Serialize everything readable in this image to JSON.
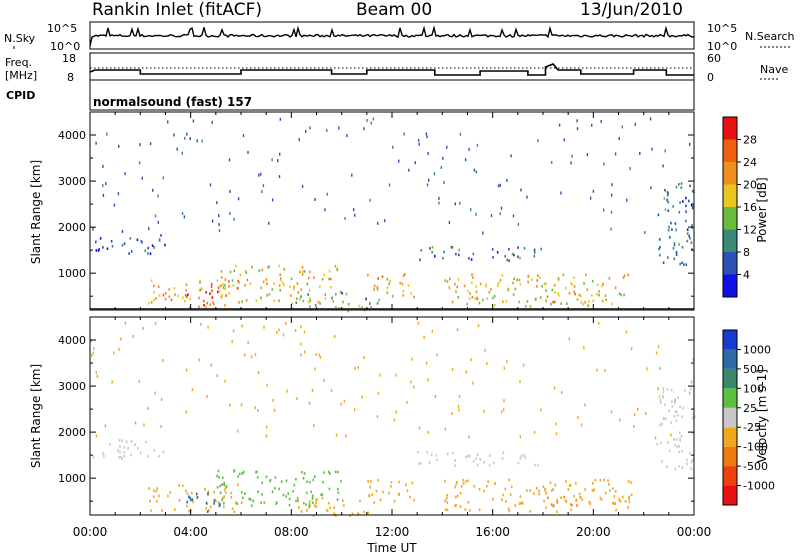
{
  "header": {
    "station": "Rankin Inlet (fitACF)",
    "beam": "Beam 00",
    "date": "13/Jun/2010"
  },
  "noise_panel": {
    "left_label": "N.Sky",
    "left_ticks": [
      "10^5",
      "10^0"
    ],
    "right_label": "N.Search",
    "right_ticks": [
      "10^5",
      "10^0"
    ]
  },
  "freq_panel": {
    "left_label_lines": [
      "Freq.",
      "[MHz]"
    ],
    "left_ticks": [
      "18",
      "8"
    ],
    "right_label": "Nave",
    "right_ticks": [
      "60",
      "0"
    ]
  },
  "cpid_panel": {
    "label": "CPID",
    "mode_text": "normalsound (fast) 157"
  },
  "power_panel": {
    "ylabel": "Slant Range [km]",
    "ytick_labels": [
      "1000",
      "2000",
      "3000",
      "4000"
    ],
    "colorbar_label": "Power [dB]",
    "colorbar_ticks": [
      "4",
      "8",
      "12",
      "16",
      "20",
      "24",
      "28"
    ],
    "colorbar_colors": [
      "#1010e8",
      "#2c50b4",
      "#3a8a7a",
      "#6cbc3c",
      "#e8c81c",
      "#f0901c",
      "#f06010",
      "#e81010"
    ]
  },
  "velocity_panel": {
    "ylabel": "Slant Range [km]",
    "ytick_labels": [
      "1000",
      "2000",
      "3000",
      "4000"
    ],
    "colorbar_label": "Velocity [m s-1]",
    "colorbar_ticks": [
      "1000",
      "500",
      "100",
      "25",
      "-25",
      "-100",
      "-500",
      "-1000"
    ],
    "colorbar_colors": [
      "#1a3ad0",
      "#2f6aa8",
      "#3a8a6a",
      "#5cc040",
      "#c8c8c8",
      "#f0a81c",
      "#f07a10",
      "#f04010",
      "#e81010"
    ]
  },
  "xaxis": {
    "label": "Time UT",
    "tick_labels": [
      "00:00",
      "04:00",
      "08:00",
      "12:00",
      "16:00",
      "20:00",
      "00:00"
    ]
  },
  "chart_data": {
    "type": "heatmap",
    "title": "Rankin Inlet (fitACF)",
    "x_unit": "hours UT",
    "xlim": [
      0,
      24
    ],
    "ylim": [
      200,
      4500
    ],
    "xlabel": "Time UT",
    "ylabel": "Slant Range [km]",
    "scatter_regions": [
      {
        "t0": 0.0,
        "t1": 3.0,
        "r0": 1450,
        "r1": 1850,
        "power": 6,
        "velocity": 25
      },
      {
        "t0": 2.3,
        "t1": 6.0,
        "r0": 300,
        "r1": 900,
        "power": 22,
        "velocity": -100
      },
      {
        "t0": 3.8,
        "t1": 5.2,
        "r0": 250,
        "r1": 700,
        "power": 28,
        "velocity": 500
      },
      {
        "t0": 5.0,
        "t1": 10.0,
        "r0": 400,
        "r1": 1200,
        "power": 18,
        "velocity": 100
      },
      {
        "t0": 8.0,
        "t1": 11.5,
        "r0": 200,
        "r1": 600,
        "power": 12,
        "velocity": -100
      },
      {
        "t0": 11.0,
        "t1": 13.0,
        "r0": 500,
        "r1": 1000,
        "power": 20,
        "velocity": -100
      },
      {
        "t0": 13.0,
        "t1": 18.0,
        "r0": 1300,
        "r1": 1600,
        "power": 8,
        "velocity": 25
      },
      {
        "t0": 14.0,
        "t1": 21.5,
        "r0": 300,
        "r1": 1000,
        "power": 18,
        "velocity": -100
      },
      {
        "t0": 18.0,
        "t1": 19.5,
        "r0": 400,
        "r1": 650,
        "power": 24,
        "velocity": -500
      },
      {
        "t0": 22.5,
        "t1": 24.0,
        "r0": 1200,
        "r1": 3000,
        "power": 8,
        "velocity": 25
      }
    ]
  }
}
